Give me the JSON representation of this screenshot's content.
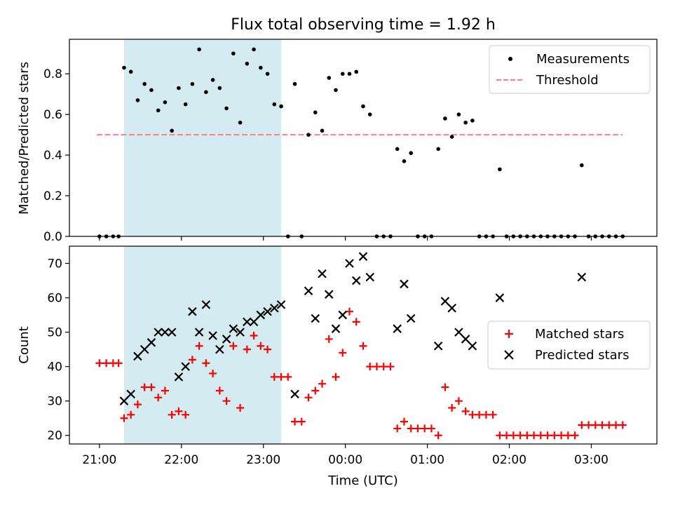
{
  "chart_data": [
    {
      "type": "scatter",
      "title": "Flux total observing time = 1.92 h",
      "xlabel": "",
      "ylabel": "Matched/Predicted stars",
      "ylim": [
        0,
        0.97
      ],
      "yticks": [
        0.0,
        0.2,
        0.4,
        0.6,
        0.8
      ],
      "ytick_labels": [
        "0.0",
        "0.2",
        "0.4",
        "0.6",
        "0.8"
      ],
      "shaded_interval": {
        "start": "21:18",
        "end": "23:13",
        "color": "#add8e6"
      },
      "legend": {
        "position": "top-right"
      },
      "series": [
        {
          "name": "Measurements",
          "style": "dot",
          "color": "#000000",
          "points": [
            [
              "21:00",
              0.0
            ],
            [
              "21:05",
              0.0
            ],
            [
              "21:10",
              0.0
            ],
            [
              "21:14",
              0.0
            ],
            [
              "21:18",
              0.83
            ],
            [
              "21:23",
              0.81
            ],
            [
              "21:28",
              0.67
            ],
            [
              "21:33",
              0.75
            ],
            [
              "21:38",
              0.72
            ],
            [
              "21:43",
              0.62
            ],
            [
              "21:48",
              0.66
            ],
            [
              "21:53",
              0.52
            ],
            [
              "21:58",
              0.73
            ],
            [
              "22:03",
              0.65
            ],
            [
              "22:08",
              0.75
            ],
            [
              "22:13",
              0.92
            ],
            [
              "22:18",
              0.71
            ],
            [
              "22:23",
              0.77
            ],
            [
              "22:28",
              0.73
            ],
            [
              "22:33",
              0.63
            ],
            [
              "22:38",
              0.9
            ],
            [
              "22:43",
              0.56
            ],
            [
              "22:48",
              0.85
            ],
            [
              "22:53",
              0.92
            ],
            [
              "22:58",
              0.83
            ],
            [
              "23:03",
              0.8
            ],
            [
              "23:08",
              0.65
            ],
            [
              "23:13",
              0.64
            ],
            [
              "23:18",
              0.0
            ],
            [
              "23:23",
              0.75
            ],
            [
              "23:28",
              0.0
            ],
            [
              "23:33",
              0.5
            ],
            [
              "23:38",
              0.61
            ],
            [
              "23:43",
              0.52
            ],
            [
              "23:48",
              0.78
            ],
            [
              "23:53",
              0.72
            ],
            [
              "23:58",
              0.8
            ],
            [
              "00:03",
              0.8
            ],
            [
              "00:08",
              0.81
            ],
            [
              "00:13",
              0.64
            ],
            [
              "00:18",
              0.6
            ],
            [
              "00:23",
              0.0
            ],
            [
              "00:28",
              0.0
            ],
            [
              "00:33",
              0.0
            ],
            [
              "00:38",
              0.43
            ],
            [
              "00:43",
              0.37
            ],
            [
              "00:48",
              0.41
            ],
            [
              "00:53",
              0.0
            ],
            [
              "00:58",
              0.0
            ],
            [
              "01:03",
              0.0
            ],
            [
              "01:08",
              0.43
            ],
            [
              "01:13",
              0.58
            ],
            [
              "01:18",
              0.49
            ],
            [
              "01:23",
              0.6
            ],
            [
              "01:28",
              0.56
            ],
            [
              "01:33",
              0.57
            ],
            [
              "01:38",
              0.0
            ],
            [
              "01:43",
              0.0
            ],
            [
              "01:48",
              0.0
            ],
            [
              "01:53",
              0.33
            ],
            [
              "01:58",
              0.0
            ],
            [
              "02:03",
              0.0
            ],
            [
              "02:08",
              0.0
            ],
            [
              "02:13",
              0.0
            ],
            [
              "02:18",
              0.0
            ],
            [
              "02:23",
              0.0
            ],
            [
              "02:28",
              0.0
            ],
            [
              "02:33",
              0.0
            ],
            [
              "02:38",
              0.0
            ],
            [
              "02:43",
              0.0
            ],
            [
              "02:48",
              0.0
            ],
            [
              "02:53",
              0.35
            ],
            [
              "02:58",
              0.0
            ],
            [
              "03:03",
              0.0
            ],
            [
              "03:08",
              0.0
            ],
            [
              "03:13",
              0.0
            ],
            [
              "03:18",
              0.0
            ],
            [
              "03:23",
              0.0
            ]
          ]
        },
        {
          "name": "Threshold",
          "style": "dashed-line",
          "color": "#ff7f7f",
          "points": [
            [
              "20:58",
              0.5
            ],
            [
              "03:23",
              0.5
            ]
          ]
        }
      ]
    },
    {
      "type": "scatter",
      "title": "",
      "xlabel": "Time (UTC)",
      "ylabel": "Count",
      "ylim": [
        17.5,
        75
      ],
      "yticks": [
        20,
        30,
        40,
        50,
        60,
        70
      ],
      "ytick_labels": [
        "20",
        "30",
        "40",
        "50",
        "60",
        "70"
      ],
      "xlim": [
        "20:38",
        "03:48"
      ],
      "xticks": [
        "21:00",
        "22:00",
        "23:00",
        "00:00",
        "01:00",
        "02:00",
        "03:00"
      ],
      "xtick_labels": [
        "21:00",
        "22:00",
        "23:00",
        "00:00",
        "01:00",
        "02:00",
        "03:00"
      ],
      "shaded_interval": {
        "start": "21:18",
        "end": "23:13",
        "color": "#add8e6"
      },
      "legend": {
        "position": "center-right"
      },
      "series": [
        {
          "name": "Matched stars",
          "style": "plus",
          "color": "#ff0000",
          "points": [
            [
              "21:00",
              41
            ],
            [
              "21:05",
              41
            ],
            [
              "21:10",
              41
            ],
            [
              "21:14",
              41
            ],
            [
              "21:18",
              25
            ],
            [
              "21:23",
              26
            ],
            [
              "21:28",
              29
            ],
            [
              "21:33",
              34
            ],
            [
              "21:38",
              34
            ],
            [
              "21:43",
              31
            ],
            [
              "21:48",
              33
            ],
            [
              "21:53",
              26
            ],
            [
              "21:58",
              27
            ],
            [
              "22:03",
              26
            ],
            [
              "22:08",
              42
            ],
            [
              "22:13",
              46
            ],
            [
              "22:18",
              41
            ],
            [
              "22:23",
              38
            ],
            [
              "22:28",
              33
            ],
            [
              "22:33",
              30
            ],
            [
              "22:38",
              46
            ],
            [
              "22:43",
              28
            ],
            [
              "22:48",
              45
            ],
            [
              "22:53",
              49
            ],
            [
              "22:58",
              46
            ],
            [
              "23:03",
              45
            ],
            [
              "23:08",
              37
            ],
            [
              "23:13",
              37
            ],
            [
              "23:18",
              37
            ],
            [
              "23:23",
              24
            ],
            [
              "23:28",
              24
            ],
            [
              "23:33",
              31
            ],
            [
              "23:38",
              33
            ],
            [
              "23:43",
              35
            ],
            [
              "23:48",
              48
            ],
            [
              "23:53",
              37
            ],
            [
              "23:58",
              44
            ],
            [
              "00:03",
              56
            ],
            [
              "00:08",
              53
            ],
            [
              "00:13",
              46
            ],
            [
              "00:18",
              40
            ],
            [
              "00:23",
              40
            ],
            [
              "00:28",
              40
            ],
            [
              "00:33",
              40
            ],
            [
              "00:38",
              22
            ],
            [
              "00:43",
              24
            ],
            [
              "00:48",
              22
            ],
            [
              "00:53",
              22
            ],
            [
              "00:58",
              22
            ],
            [
              "01:03",
              22
            ],
            [
              "01:08",
              20
            ],
            [
              "01:13",
              34
            ],
            [
              "01:18",
              28
            ],
            [
              "01:23",
              30
            ],
            [
              "01:28",
              27
            ],
            [
              "01:33",
              26
            ],
            [
              "01:38",
              26
            ],
            [
              "01:43",
              26
            ],
            [
              "01:48",
              26
            ],
            [
              "01:53",
              20
            ],
            [
              "01:58",
              20
            ],
            [
              "02:03",
              20
            ],
            [
              "02:08",
              20
            ],
            [
              "02:13",
              20
            ],
            [
              "02:18",
              20
            ],
            [
              "02:23",
              20
            ],
            [
              "02:28",
              20
            ],
            [
              "02:33",
              20
            ],
            [
              "02:38",
              20
            ],
            [
              "02:43",
              20
            ],
            [
              "02:48",
              20
            ],
            [
              "02:53",
              23
            ],
            [
              "02:58",
              23
            ],
            [
              "03:03",
              23
            ],
            [
              "03:08",
              23
            ],
            [
              "03:13",
              23
            ],
            [
              "03:18",
              23
            ],
            [
              "03:23",
              23
            ]
          ]
        },
        {
          "name": "Predicted stars",
          "style": "x",
          "color": "#000000",
          "points": [
            [
              "21:18",
              30
            ],
            [
              "21:23",
              32
            ],
            [
              "21:28",
              43
            ],
            [
              "21:33",
              45
            ],
            [
              "21:38",
              47
            ],
            [
              "21:43",
              50
            ],
            [
              "21:48",
              50
            ],
            [
              "21:53",
              50
            ],
            [
              "21:58",
              37
            ],
            [
              "22:03",
              40
            ],
            [
              "22:08",
              56
            ],
            [
              "22:13",
              50
            ],
            [
              "22:18",
              58
            ],
            [
              "22:23",
              49
            ],
            [
              "22:28",
              45
            ],
            [
              "22:33",
              48
            ],
            [
              "22:38",
              51
            ],
            [
              "22:43",
              50
            ],
            [
              "22:48",
              53
            ],
            [
              "22:53",
              53
            ],
            [
              "22:58",
              55
            ],
            [
              "23:03",
              56
            ],
            [
              "23:08",
              57
            ],
            [
              "23:13",
              58
            ],
            [
              "23:23",
              32
            ],
            [
              "23:33",
              62
            ],
            [
              "23:38",
              54
            ],
            [
              "23:43",
              67
            ],
            [
              "23:48",
              61
            ],
            [
              "23:53",
              51
            ],
            [
              "23:58",
              55
            ],
            [
              "00:03",
              70
            ],
            [
              "00:08",
              65
            ],
            [
              "00:13",
              72
            ],
            [
              "00:18",
              66
            ],
            [
              "00:38",
              51
            ],
            [
              "00:43",
              64
            ],
            [
              "00:48",
              54
            ],
            [
              "01:08",
              46
            ],
            [
              "01:13",
              59
            ],
            [
              "01:18",
              57
            ],
            [
              "01:23",
              50
            ],
            [
              "01:28",
              48
            ],
            [
              "01:33",
              46
            ],
            [
              "01:53",
              60
            ],
            [
              "02:53",
              66
            ]
          ]
        }
      ]
    }
  ]
}
